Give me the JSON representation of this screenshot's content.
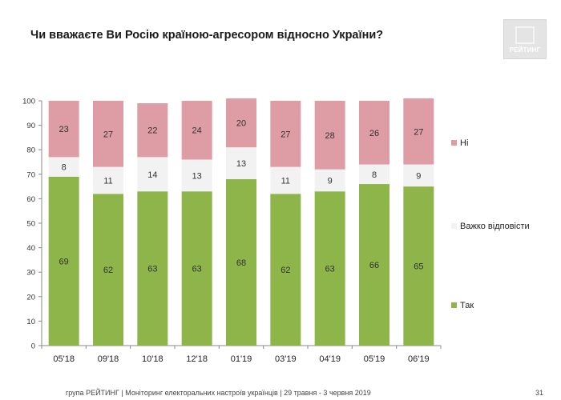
{
  "page": {
    "title": "Чи вважаєте Ви Росію країною-агресором відносно України?",
    "logo_text": "РЕЙТИНГ",
    "footer": "група РЕЙТИНГ | Моніторинг електоральних настроїв українців  | 29 травня - 3 червня 2019",
    "page_number": "31"
  },
  "chart_data": {
    "type": "bar",
    "stacked": true,
    "categories": [
      "05'18",
      "09'18",
      "10'18",
      "12'18",
      "01'19",
      "03'19",
      "04'19",
      "05'19",
      "06'19"
    ],
    "series": [
      {
        "name": "Так",
        "color": "#8db54a",
        "values": [
          69,
          62,
          63,
          63,
          68,
          62,
          63,
          66,
          65
        ]
      },
      {
        "name": "Важко відповісти",
        "color": "#f2f2f2",
        "values": [
          8,
          11,
          14,
          13,
          13,
          11,
          9,
          8,
          9
        ]
      },
      {
        "name": "Ні",
        "color": "#de9ca4",
        "values": [
          23,
          27,
          22,
          24,
          20,
          27,
          28,
          26,
          27
        ]
      }
    ],
    "ylim": [
      0,
      100
    ],
    "yticks": [
      0,
      10,
      20,
      30,
      40,
      50,
      60,
      70,
      80,
      90,
      100
    ],
    "legend_position": "right",
    "grid": false
  }
}
